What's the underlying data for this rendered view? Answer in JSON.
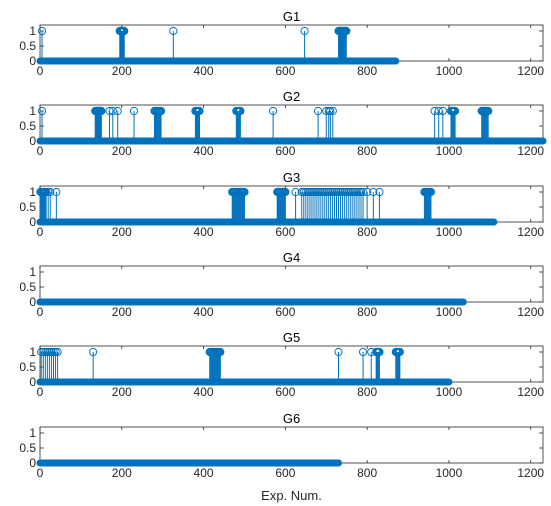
{
  "chart_data": [
    {
      "type": "stem",
      "title": "G1",
      "xlim": [
        0,
        1230
      ],
      "ylim": [
        0,
        1.2
      ],
      "xticks": [
        0,
        200,
        400,
        600,
        800,
        1000,
        1200
      ],
      "yticks": [
        0,
        0.5,
        1
      ],
      "n_points": 870,
      "ones": [
        5,
        195,
        196,
        197,
        198,
        199,
        200,
        201,
        202,
        203,
        204,
        205,
        206,
        326,
        647,
        730,
        731,
        732,
        733,
        734,
        735,
        736,
        737,
        738,
        739,
        740,
        741,
        742,
        743,
        744,
        745,
        746,
        747,
        748,
        749
      ]
    },
    {
      "type": "stem",
      "title": "G2",
      "xlim": [
        0,
        1230
      ],
      "ylim": [
        0,
        1.2
      ],
      "xticks": [
        0,
        200,
        400,
        600,
        800,
        1000,
        1200
      ],
      "yticks": [
        0,
        0.5,
        1
      ],
      "n_points": 1230,
      "ones": [
        5,
        135,
        136,
        137,
        138,
        139,
        140,
        141,
        142,
        143,
        144,
        145,
        146,
        147,
        148,
        149,
        150,
        170,
        178,
        190,
        230,
        280,
        282,
        284,
        286,
        288,
        290,
        292,
        294,
        296,
        380,
        382,
        384,
        386,
        388,
        390,
        480,
        482,
        484,
        486,
        488,
        490,
        570,
        680,
        700,
        706,
        710,
        716,
        965,
        975,
        985,
        1005,
        1007,
        1009,
        1011,
        1013,
        1015,
        1080,
        1082,
        1084,
        1086,
        1088,
        1090,
        1092,
        1094,
        1096
      ]
    },
    {
      "type": "stem",
      "title": "G3",
      "xlim": [
        0,
        1230
      ],
      "ylim": [
        0,
        1.2
      ],
      "xticks": [
        0,
        200,
        400,
        600,
        800,
        1000,
        1200
      ],
      "yticks": [
        0,
        0.5,
        1
      ],
      "n_points": 1110,
      "ones": [
        1,
        3,
        5,
        7,
        9,
        11,
        13,
        15,
        20,
        25,
        40,
        470,
        472,
        474,
        476,
        478,
        480,
        482,
        484,
        486,
        488,
        490,
        492,
        494,
        496,
        498,
        500,
        580,
        582,
        584,
        586,
        588,
        590,
        592,
        594,
        596,
        598,
        600,
        625,
        640,
        645,
        650,
        655,
        660,
        665,
        670,
        675,
        680,
        685,
        690,
        695,
        700,
        705,
        710,
        715,
        720,
        725,
        730,
        735,
        740,
        745,
        750,
        755,
        760,
        765,
        770,
        775,
        780,
        785,
        790,
        800,
        815,
        830,
        940,
        942,
        944,
        946,
        948,
        950,
        952,
        954,
        956
      ]
    },
    {
      "type": "stem",
      "title": "G4",
      "xlim": [
        0,
        1230
      ],
      "ylim": [
        0,
        1.2
      ],
      "xticks": [
        0,
        200,
        400,
        600,
        800,
        1000,
        1200
      ],
      "yticks": [
        0,
        0.5,
        1
      ],
      "n_points": 1035,
      "ones": []
    },
    {
      "type": "stem",
      "title": "G5",
      "xlim": [
        0,
        1230
      ],
      "ylim": [
        0,
        1.2
      ],
      "xticks": [
        0,
        200,
        400,
        600,
        800,
        1000,
        1200
      ],
      "yticks": [
        0,
        0.5,
        1
      ],
      "n_points": 1000,
      "ones": [
        3,
        8,
        13,
        18,
        23,
        28,
        33,
        38,
        43,
        130,
        415,
        417,
        419,
        421,
        423,
        425,
        427,
        429,
        431,
        433,
        435,
        437,
        439,
        441,
        730,
        790,
        810,
        822,
        824,
        826,
        828,
        830,
        870,
        872,
        874,
        876,
        878,
        880
      ]
    },
    {
      "type": "stem",
      "title": "G6",
      "xlim": [
        0,
        1230
      ],
      "ylim": [
        0,
        1.2
      ],
      "xticks": [
        0,
        200,
        400,
        600,
        800,
        1000,
        1200
      ],
      "yticks": [
        0,
        0.5,
        1
      ],
      "n_points": 730,
      "ones": []
    }
  ],
  "xlabel": "Exp. Num.",
  "colors": {
    "series": "#0072BD",
    "axis": "#262626",
    "background": "#ffffff"
  }
}
